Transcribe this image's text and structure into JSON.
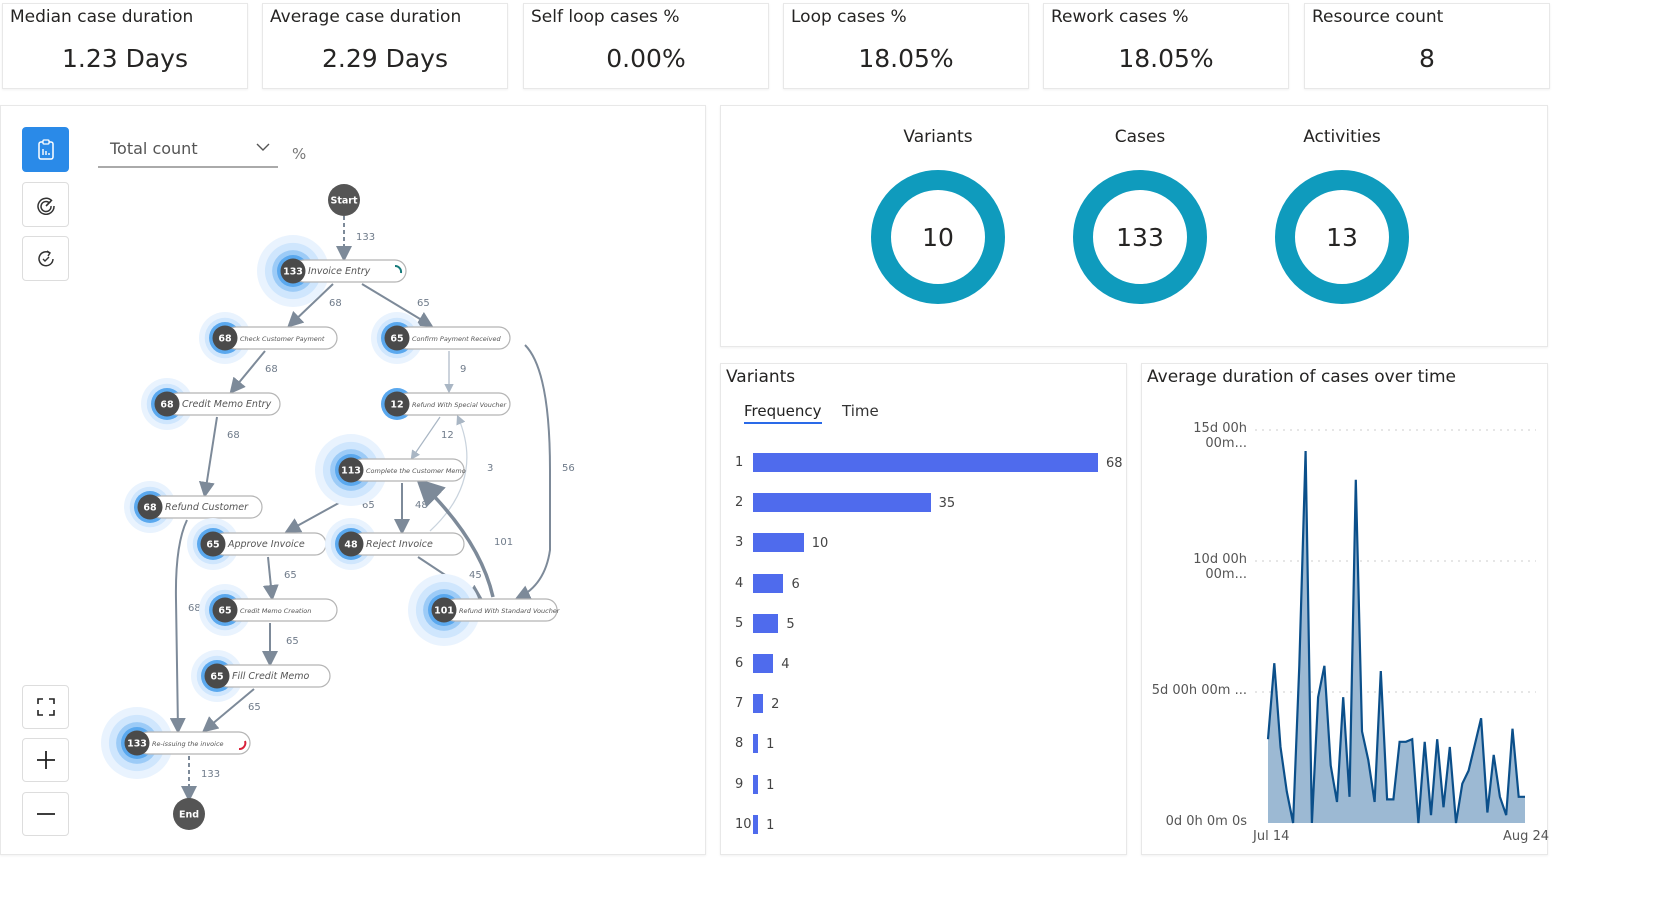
{
  "kpis": [
    {
      "title": "Median case duration",
      "value": "1.23 Days"
    },
    {
      "title": "Average case duration",
      "value": "2.29 Days"
    },
    {
      "title": "Self loop cases %",
      "value": "0.00%"
    },
    {
      "title": "Loop cases %",
      "value": "18.05%"
    },
    {
      "title": "Rework cases %",
      "value": "18.05%"
    },
    {
      "title": "Resource count",
      "value": "8"
    }
  ],
  "process_map": {
    "tools": [
      {
        "icon": "clipboard-chart-icon",
        "active": true
      },
      {
        "icon": "gauge-icon",
        "active": false
      },
      {
        "icon": "refresh-check-icon",
        "active": false
      }
    ],
    "metric_dropdown": "Total count",
    "percent_label": "%",
    "zoom_controls": [
      "fit-screen-icon",
      "plus-icon",
      "minus-icon"
    ],
    "start_label": "Start",
    "end_label": "End",
    "nodes": [
      {
        "name": "Invoice Entry",
        "count": "133"
      },
      {
        "name": "Check Customer Payment",
        "count": "68"
      },
      {
        "name": "Confirm Payment Received",
        "count": "65"
      },
      {
        "name": "Credit Memo Entry",
        "count": "68"
      },
      {
        "name": "Refund With Special Voucher",
        "count": "12"
      },
      {
        "name": "Complete the Customer Memo",
        "count": "113"
      },
      {
        "name": "Refund Customer",
        "count": "68"
      },
      {
        "name": "Approve Invoice",
        "count": "65"
      },
      {
        "name": "Reject Invoice",
        "count": "48"
      },
      {
        "name": "Credit Memo Creation",
        "count": "65"
      },
      {
        "name": "Refund With Standard Voucher",
        "count": "101"
      },
      {
        "name": "Fill Credit Memo",
        "count": "65"
      },
      {
        "name": "Re-issuing the invoice",
        "count": "133"
      }
    ],
    "edges": [
      "133",
      "68",
      "65",
      "68",
      "9",
      "68",
      "12",
      "3",
      "56",
      "65",
      "48",
      "101",
      "45",
      "65",
      "65",
      "68",
      "65",
      "133"
    ]
  },
  "summary": {
    "items": [
      {
        "label": "Variants",
        "value": "10"
      },
      {
        "label": "Cases",
        "value": "133"
      },
      {
        "label": "Activities",
        "value": "13"
      }
    ],
    "ring_color": "#0f9bbd"
  },
  "variants": {
    "title": "Variants",
    "tabs": [
      "Frequency",
      "Time"
    ],
    "active_tab": "Frequency",
    "bar_color": "#4f6bed"
  },
  "duration": {
    "title": "Average duration of cases over time",
    "line_color": "#0b4f8a",
    "fill_color": "#9cb9d3"
  },
  "chart_data": [
    {
      "type": "bar",
      "orientation": "horizontal",
      "title": "Variants",
      "categories": [
        "1",
        "2",
        "3",
        "4",
        "5",
        "6",
        "7",
        "8",
        "9",
        "10"
      ],
      "values": [
        68,
        35,
        10,
        6,
        5,
        4,
        2,
        1,
        1,
        1
      ]
    },
    {
      "type": "area",
      "title": "Average duration of cases over time",
      "x_ticks": [
        "Jul 14",
        "Aug 24"
      ],
      "y_ticks": [
        "0d 0h 0m 0s",
        "5d 00h 00m ...",
        "10d 00h 00m...",
        "15d 00h 00m..."
      ],
      "ylim": [
        0,
        15
      ],
      "yunit": "days",
      "grid": true,
      "x": [
        "Jul 14",
        "Jul 15",
        "Jul 16",
        "Jul 17",
        "Jul 18",
        "Jul 19",
        "Jul 20",
        "Jul 21",
        "Jul 22",
        "Jul 23",
        "Jul 24",
        "Jul 25",
        "Jul 26",
        "Jul 27",
        "Jul 28",
        "Jul 29",
        "Jul 30",
        "Jul 31",
        "Aug 1",
        "Aug 2",
        "Aug 3",
        "Aug 4",
        "Aug 5",
        "Aug 6",
        "Aug 7",
        "Aug 8",
        "Aug 9",
        "Aug 10",
        "Aug 11",
        "Aug 12",
        "Aug 13",
        "Aug 14",
        "Aug 15",
        "Aug 16",
        "Aug 17",
        "Aug 18",
        "Aug 19",
        "Aug 20",
        "Aug 21",
        "Aug 22",
        "Aug 23",
        "Aug 24"
      ],
      "y": [
        3.2,
        6.1,
        2.9,
        1.2,
        0,
        6.0,
        14.2,
        0,
        4.8,
        6.0,
        2.2,
        0.8,
        4.8,
        1.0,
        13.1,
        3.5,
        2.4,
        0.8,
        5.8,
        0.9,
        0.9,
        3.1,
        3.1,
        3.2,
        0,
        3.1,
        0.3,
        3.2,
        0.6,
        2.9,
        0,
        1.5,
        2.0,
        3.0,
        4.0,
        0.4,
        2.6,
        1.0,
        0.3,
        3.6,
        1.0,
        1.0
      ]
    }
  ]
}
